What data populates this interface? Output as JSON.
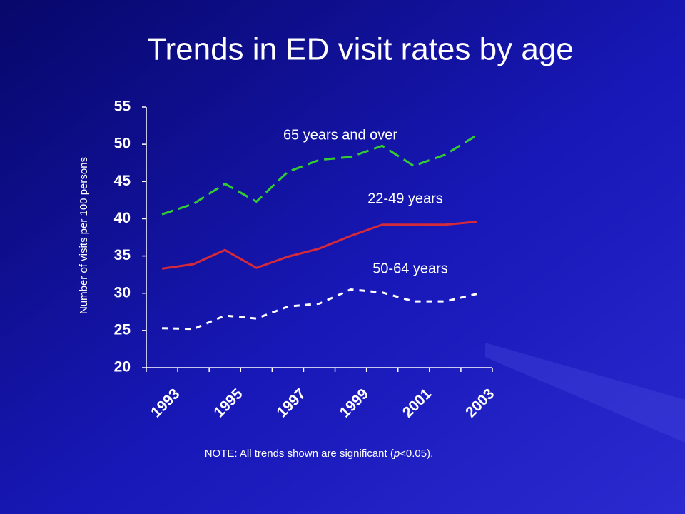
{
  "chart_data": {
    "type": "line",
    "title": "Trends in ED visit rates by age",
    "ylabel": "Number of visits per 100 persons",
    "categories": [
      "1993",
      null,
      "1995",
      null,
      "1997",
      null,
      "1999",
      null,
      "2001",
      null,
      "2003"
    ],
    "series": [
      {
        "name": "65 years and over",
        "color": "#33cc33",
        "dash": "dashed",
        "values": [
          40.6,
          42.0,
          44.7,
          42.3,
          46.3,
          47.9,
          48.3,
          49.8,
          47.1,
          48.6,
          51.2
        ]
      },
      {
        "name": "22-49 years",
        "color": "#d42a3a",
        "dash": "solid",
        "values": [
          33.3,
          33.9,
          35.8,
          33.4,
          34.9,
          36.0,
          37.7,
          39.2,
          39.2,
          39.2,
          39.6
        ]
      },
      {
        "name": "50-64 years",
        "color": "#ffffff",
        "dash": "dotted",
        "values": [
          25.3,
          25.2,
          27.0,
          26.6,
          28.2,
          28.6,
          30.5,
          30.1,
          28.9,
          28.9,
          29.9
        ]
      }
    ],
    "ylim": [
      20,
      55
    ],
    "yticks": [
      20,
      25,
      30,
      35,
      40,
      45,
      50,
      55
    ],
    "note": {
      "before": "NOTE: All trends shown are significant (",
      "italic": "p",
      "after": "<0.05)."
    }
  }
}
